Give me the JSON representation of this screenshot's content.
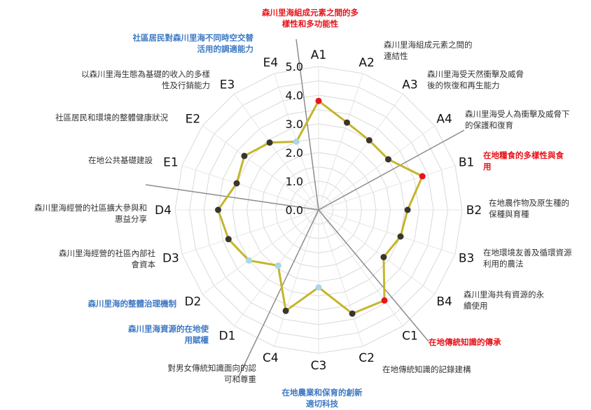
{
  "chart_data": {
    "type": "radar",
    "rlim": [
      0,
      5
    ],
    "ticks": [
      "0.0",
      "1.0",
      "2.0",
      "3.0",
      "4.0",
      "5.0"
    ],
    "colors": {
      "line": "#c5b52c",
      "point": "#3a352c",
      "red": "#e8141b",
      "blue": "#a9d6e9",
      "descBlack": "#333333",
      "descRed": "#e8141b",
      "descBlue": "#3d79c4"
    },
    "axes": [
      {
        "code": "A1",
        "value": 3.8,
        "marker": "red",
        "desc": "森川里海組成元素之間的多\n樣性和多功能性",
        "descColor": "red"
      },
      {
        "code": "A2",
        "value": 3.2,
        "marker": "black",
        "desc": "森川里海組成元素之間的\n連結性",
        "descColor": "black"
      },
      {
        "code": "A3",
        "value": 3.0,
        "marker": "black",
        "desc": "森川里海受天然衝擊及威脅\n後的恢復和再生能力",
        "descColor": "black"
      },
      {
        "code": "A4",
        "value": 3.0,
        "marker": "black",
        "desc": "森川里海受人為衝擊及威脅下\n的保護和復育",
        "descColor": "black"
      },
      {
        "code": "B1",
        "value": 3.8,
        "marker": "red",
        "desc": "在地糧食的多樣性與食\n用",
        "descColor": "red"
      },
      {
        "code": "B2",
        "value": 3.1,
        "marker": "black",
        "desc": "在地農作物及原生種的\n保種與育種",
        "descColor": "black"
      },
      {
        "code": "B3",
        "value": 3.0,
        "marker": "black",
        "desc": "在地環境友善及循環資源\n利用的農法",
        "descColor": "black"
      },
      {
        "code": "B4",
        "value": 2.8,
        "marker": "black",
        "desc": "森川里海共有資源的永\n續使用",
        "descColor": "black"
      },
      {
        "code": "C1",
        "value": 3.9,
        "marker": "red",
        "desc": "在地傳統知識的傳承",
        "descColor": "red"
      },
      {
        "code": "C2",
        "value": 3.8,
        "marker": "black",
        "desc": "在地傳統知識的記錄建構",
        "descColor": "black"
      },
      {
        "code": "C3",
        "value": 2.7,
        "marker": "blue",
        "desc": "在地農業和保育的創新\n適切科技",
        "descColor": "blue"
      },
      {
        "code": "C4",
        "value": 3.7,
        "marker": "black",
        "desc": "對男女傳統知識面向的認\n可和尊重",
        "descColor": "black"
      },
      {
        "code": "D1",
        "value": 2.4,
        "marker": "blue",
        "desc": "森川里海資源的在地使\n用賦權",
        "descColor": "blue"
      },
      {
        "code": "D2",
        "value": 3.0,
        "marker": "blue",
        "desc": "森川里海的整體治理機制",
        "descColor": "blue"
      },
      {
        "code": "D3",
        "value": 3.3,
        "marker": "black",
        "desc": "森川里海經營的社區內部社\n會資本",
        "descColor": "black"
      },
      {
        "code": "D4",
        "value": 3.5,
        "marker": "black",
        "desc": "森川里海經營的社區擴大參與和\n惠益分享",
        "descColor": "black"
      },
      {
        "code": "E1",
        "value": 3.0,
        "marker": "black",
        "desc": "在地公共基礎建設",
        "descColor": "black"
      },
      {
        "code": "E2",
        "value": 3.2,
        "marker": "black",
        "desc": "社區居民和環境的整體健康狀況",
        "descColor": "black"
      },
      {
        "code": "E3",
        "value": 2.9,
        "marker": "black",
        "desc": "以森川里海生態為基礎的收入的多樣\n性及行銷能力",
        "descColor": "black"
      },
      {
        "code": "E4",
        "value": 2.5,
        "marker": "blue",
        "desc": "社區居民對森川里海不同時空交替\n活用的調適能力",
        "descColor": "blue"
      }
    ]
  }
}
